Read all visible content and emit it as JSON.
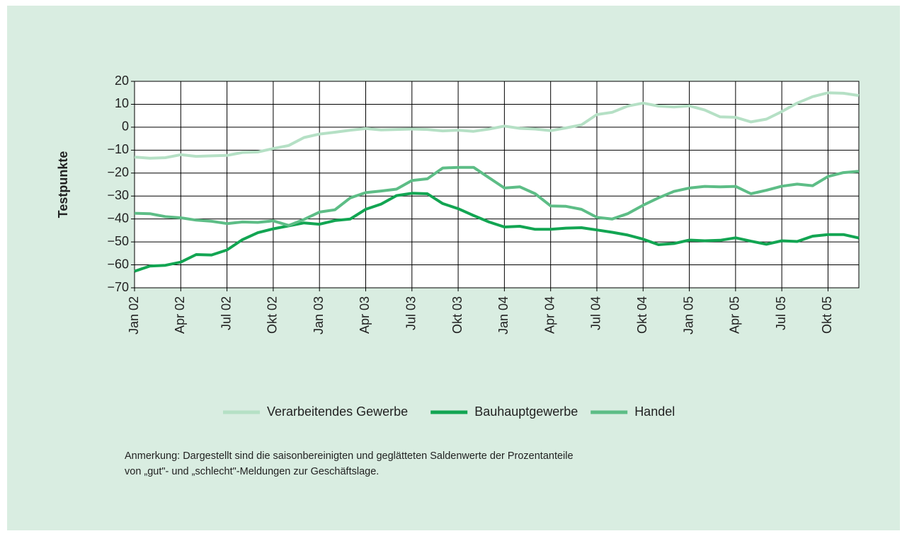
{
  "chart_data": {
    "type": "line",
    "y_label": "Testpunkte",
    "categories": [
      "Jan 02",
      null,
      null,
      "Apr 02",
      null,
      null,
      "Jul 02",
      null,
      null,
      "Okt 02",
      null,
      null,
      "Jan 03",
      null,
      null,
      "Apr 03",
      null,
      null,
      "Jul 03",
      null,
      null,
      "Okt 03",
      null,
      null,
      "Jan 04",
      null,
      null,
      "Apr 04",
      null,
      null,
      "Jul 04",
      null,
      null,
      "Okt 04",
      null,
      null,
      "Jan 05",
      null,
      null,
      "Apr 05",
      null,
      null,
      "Jul 05",
      null,
      null,
      "Okt 05",
      null,
      null
    ],
    "series": [
      {
        "name": "Verarbeitendes Gewerbe",
        "color": "#b5e0c5",
        "values": [
          -13,
          -13.5,
          -13.3,
          -12,
          -12.7,
          -12.5,
          -12.3,
          -11,
          -10.8,
          -9.3,
          -8,
          -4.5,
          -3,
          -2.2,
          -1.3,
          -0.6,
          -1.2,
          -1,
          -0.8,
          -1,
          -1.6,
          -1.3,
          -1.8,
          -0.8,
          0.5,
          -0.5,
          -0.8,
          -1.5,
          -0.3,
          1,
          5.5,
          6.5,
          9.2,
          10.5,
          9.2,
          8.8,
          9.3,
          7.5,
          4.5,
          4.3,
          2.3,
          3.5,
          6.8,
          10.5,
          13.3,
          15,
          14.8,
          13.8
        ]
      },
      {
        "name": "Bauhauptgewerbe",
        "color": "#12a552",
        "values": [
          -62.8,
          -60.5,
          -60.2,
          -58.8,
          -55.5,
          -55.7,
          -53.5,
          -49,
          -46,
          -44.3,
          -43,
          -41.7,
          -42.3,
          -40.7,
          -40,
          -35.8,
          -33.5,
          -29.8,
          -28.8,
          -29,
          -33.3,
          -35.5,
          -38.5,
          -41.3,
          -43.5,
          -43.2,
          -44.5,
          -44.5,
          -44,
          -43.8,
          -44.8,
          -45.8,
          -47,
          -48.8,
          -51.2,
          -50.7,
          -49.2,
          -49.5,
          -49.3,
          -48.2,
          -49.7,
          -51,
          -49.5,
          -49.8,
          -47.5,
          -46.8,
          -46.8,
          -48.3
        ]
      },
      {
        "name": "Handel",
        "color": "#5dbd86",
        "values": [
          -37.5,
          -37.7,
          -39,
          -39.5,
          -40.5,
          -41,
          -42,
          -41.3,
          -41.5,
          -40.8,
          -42.8,
          -40.2,
          -37,
          -36,
          -30.8,
          -28.5,
          -27.8,
          -27,
          -23.2,
          -22.5,
          -17.8,
          -17.5,
          -17.5,
          -22,
          -26.5,
          -26,
          -29,
          -34.3,
          -34.5,
          -35.8,
          -39.3,
          -40,
          -37.7,
          -34,
          -30.8,
          -28,
          -26.5,
          -25.8,
          -26,
          -25.8,
          -29,
          -27.5,
          -25.7,
          -24.8,
          -25.5,
          -21.5,
          -19.8,
          -19.2
        ]
      }
    ],
    "ylim": [
      -70,
      20
    ],
    "yticks": [
      20,
      10,
      0,
      {
        "value": -10,
        "label": "−10"
      },
      {
        "value": -20,
        "label": "−20"
      },
      {
        "value": -30,
        "label": "−30"
      },
      {
        "value": -40,
        "label": "−40"
      },
      {
        "value": -50,
        "label": "−50"
      },
      {
        "value": -60,
        "label": "−60"
      },
      {
        "value": -70,
        "label": "−70"
      }
    ],
    "grid": true,
    "legend": "bottom",
    "note": [
      "Anmerkung: Dargestellt sind die saisonbereinigten und geglätteten Saldenwerte der Prozentanteile",
      "von „gut\"- und „schlecht\"-Meldungen zur Geschäftslage."
    ]
  }
}
